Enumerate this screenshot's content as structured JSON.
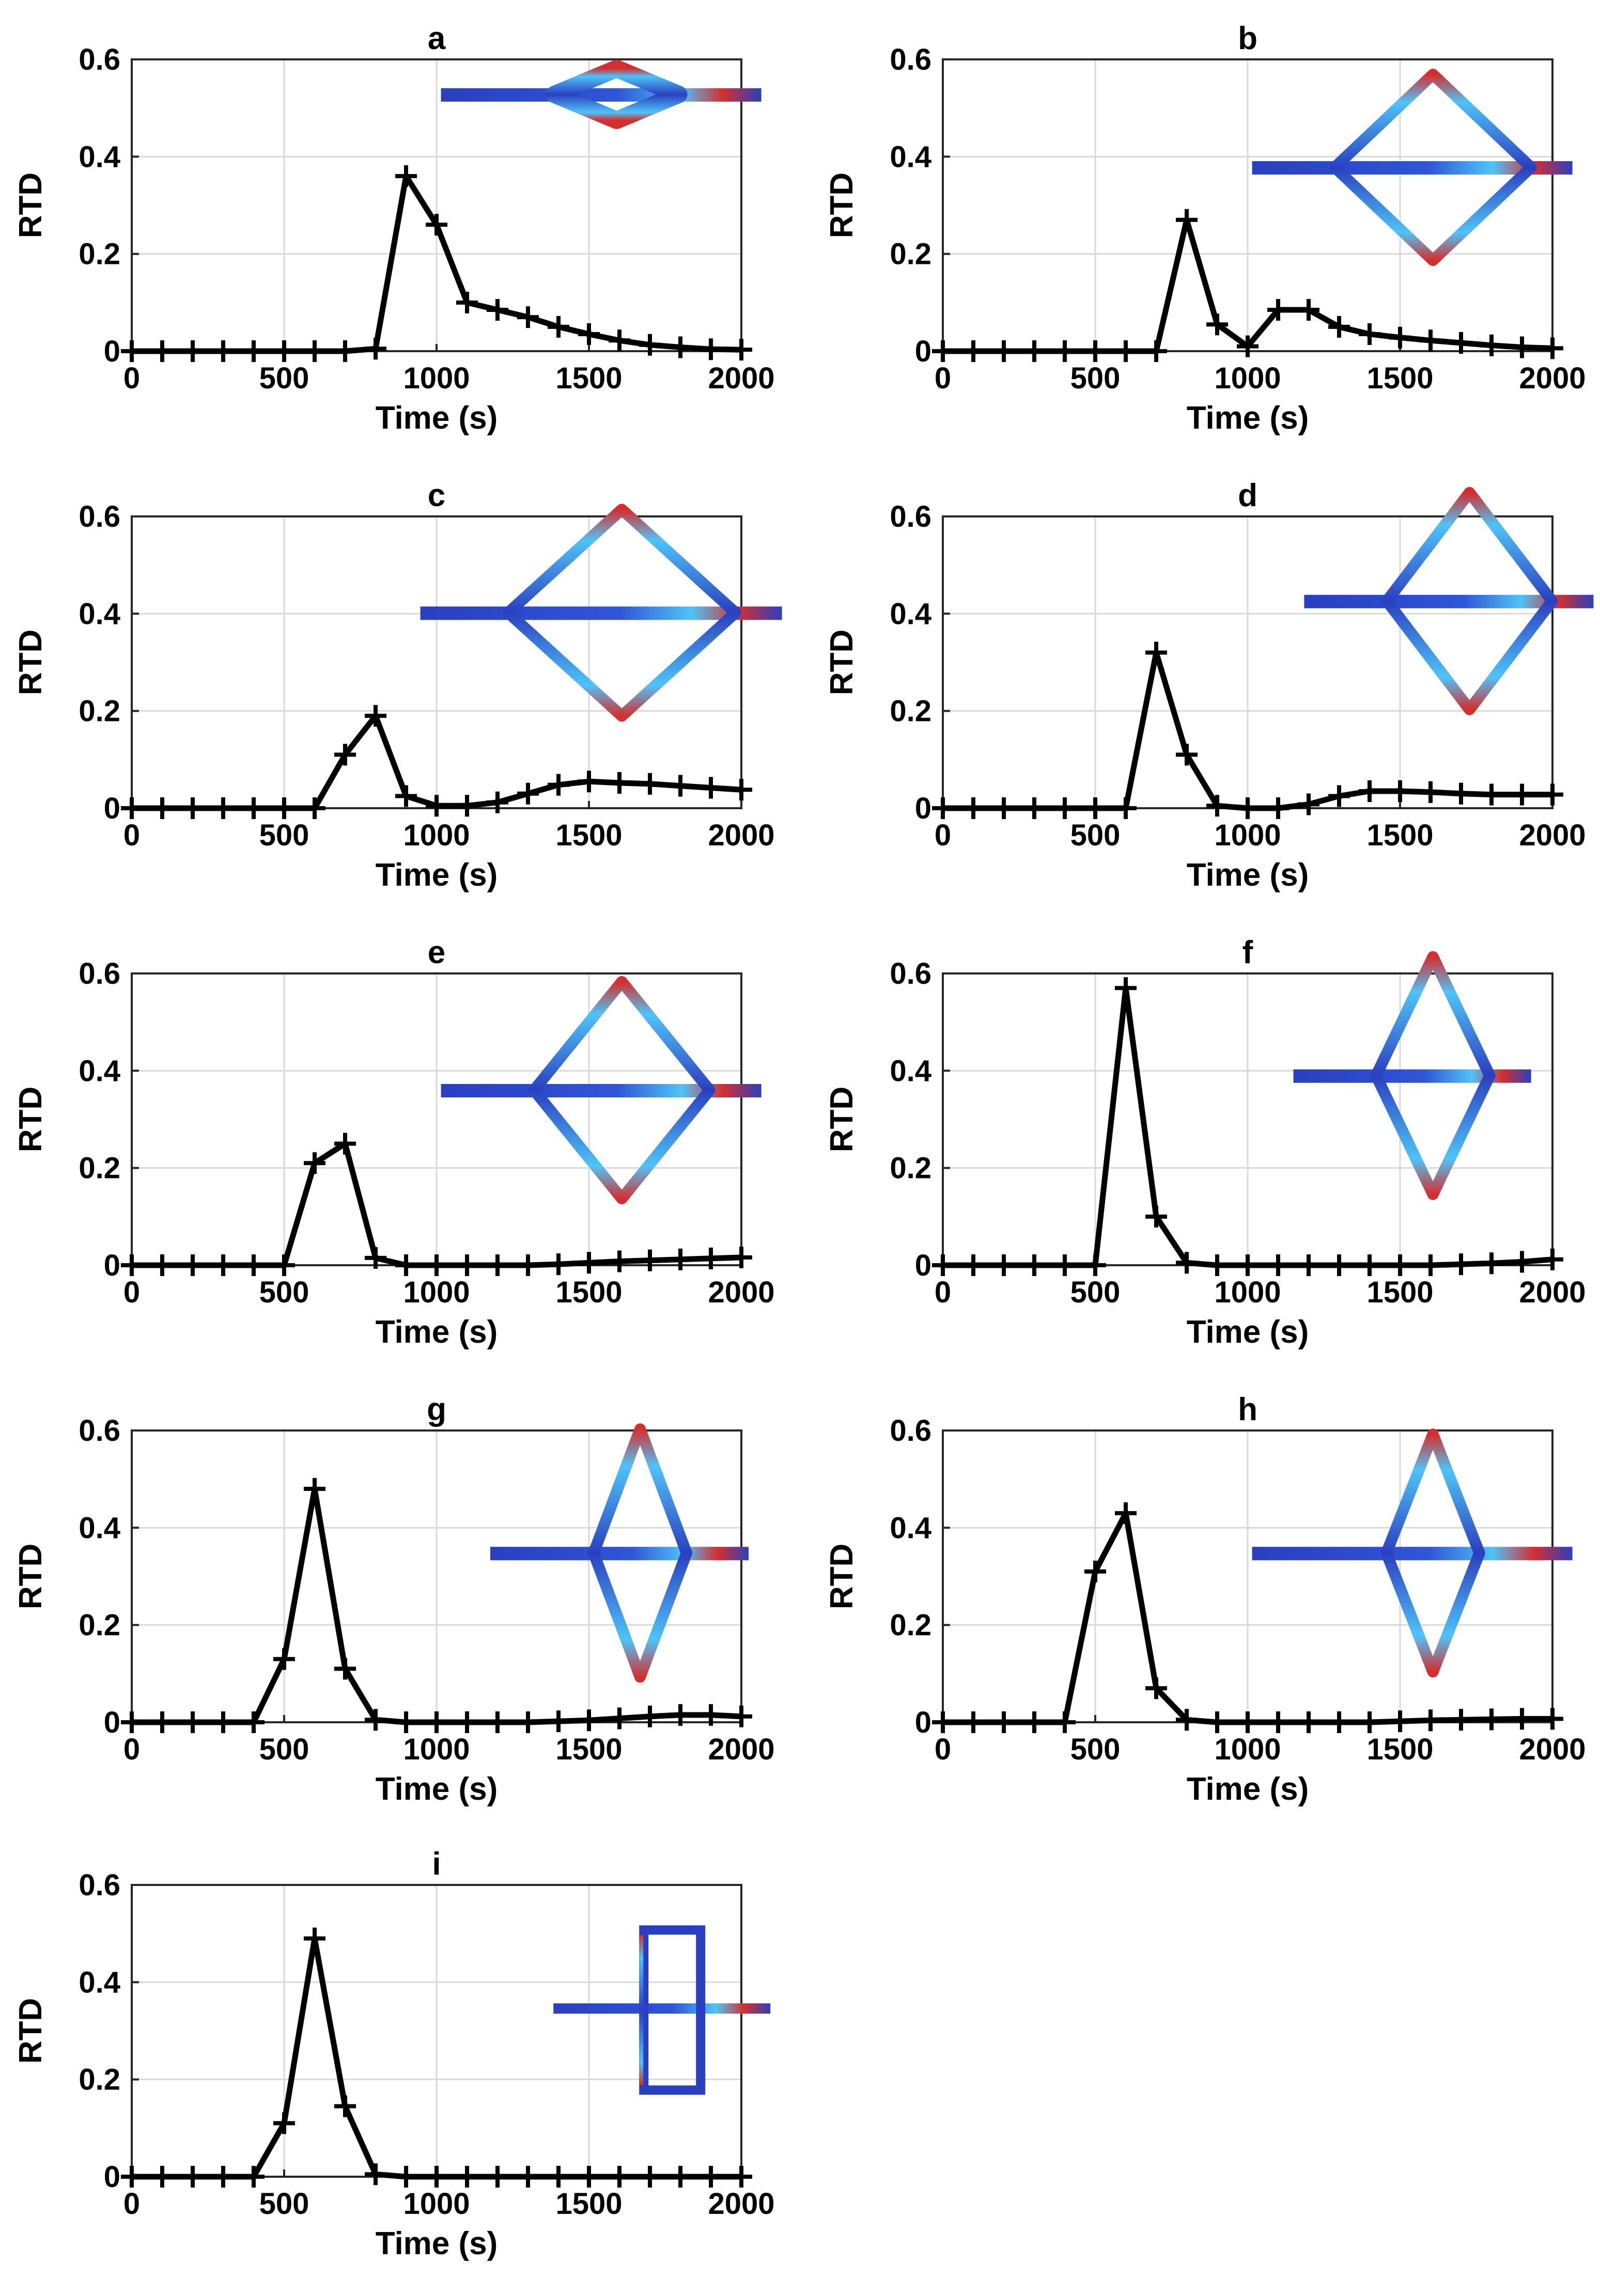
{
  "chart_data": [
    {
      "type": "line",
      "title": "a",
      "xlabel": "Time (s)",
      "ylabel": "RTD",
      "xlim": [
        0,
        2000
      ],
      "ylim": [
        0,
        0.6
      ],
      "xticks": [
        0,
        500,
        1000,
        1500,
        2000
      ],
      "yticks": [
        0,
        0.2,
        0.4,
        0.6
      ],
      "grid": true,
      "x": [
        0,
        100,
        200,
        300,
        400,
        500,
        600,
        700,
        800,
        900,
        1000,
        1100,
        1200,
        1300,
        1400,
        1500,
        1600,
        1700,
        1800,
        1900,
        2000
      ],
      "values": [
        0,
        0,
        0,
        0,
        0,
        0,
        0,
        0,
        0.005,
        0.36,
        0.26,
        0.1,
        0.085,
        0.07,
        0.05,
        0.035,
        0.022,
        0.013,
        0.008,
        0.004,
        0.003
      ],
      "inset": {
        "style": "straight-diamond"
      }
    },
    {
      "type": "line",
      "title": "b",
      "xlabel": "Time (s)",
      "ylabel": "RTD",
      "xlim": [
        0,
        2000
      ],
      "ylim": [
        0,
        0.6
      ],
      "xticks": [
        0,
        500,
        1000,
        1500,
        2000
      ],
      "yticks": [
        0,
        0.2,
        0.4,
        0.6
      ],
      "grid": true,
      "x": [
        0,
        100,
        200,
        300,
        400,
        500,
        600,
        700,
        800,
        900,
        1000,
        1100,
        1200,
        1300,
        1400,
        1500,
        1600,
        1700,
        1800,
        1900,
        2000
      ],
      "values": [
        0,
        0,
        0,
        0,
        0,
        0,
        0,
        0,
        0.27,
        0.055,
        0.01,
        0.085,
        0.085,
        0.05,
        0.035,
        0.028,
        0.022,
        0.017,
        0.012,
        0.008,
        0.006
      ],
      "inset": {
        "style": "diamond"
      }
    },
    {
      "type": "line",
      "title": "c",
      "xlabel": "Time (s)",
      "ylabel": "RTD",
      "xlim": [
        0,
        2000
      ],
      "ylim": [
        0,
        0.6
      ],
      "xticks": [
        0,
        500,
        1000,
        1500,
        2000
      ],
      "yticks": [
        0,
        0.2,
        0.4,
        0.6
      ],
      "grid": true,
      "x": [
        0,
        100,
        200,
        300,
        400,
        500,
        600,
        700,
        800,
        900,
        1000,
        1100,
        1200,
        1300,
        1400,
        1500,
        1600,
        1700,
        1800,
        1900,
        2000
      ],
      "values": [
        0,
        0,
        0,
        0,
        0,
        0,
        0,
        0.11,
        0.19,
        0.025,
        0.005,
        0.005,
        0.012,
        0.03,
        0.048,
        0.055,
        0.052,
        0.05,
        0.046,
        0.042,
        0.038
      ],
      "inset": {
        "style": "diamond"
      }
    },
    {
      "type": "line",
      "title": "d",
      "xlabel": "Time (s)",
      "ylabel": "RTD",
      "xlim": [
        0,
        2000
      ],
      "ylim": [
        0,
        0.6
      ],
      "xticks": [
        0,
        500,
        1000,
        1500,
        2000
      ],
      "yticks": [
        0,
        0.2,
        0.4,
        0.6
      ],
      "grid": true,
      "x": [
        0,
        100,
        200,
        300,
        400,
        500,
        600,
        700,
        800,
        900,
        1000,
        1100,
        1200,
        1300,
        1400,
        1500,
        1600,
        1700,
        1800,
        1900,
        2000
      ],
      "values": [
        0,
        0,
        0,
        0,
        0,
        0,
        0,
        0.32,
        0.11,
        0.005,
        0,
        0,
        0.008,
        0.025,
        0.035,
        0.035,
        0.033,
        0.03,
        0.028,
        0.028,
        0.028
      ],
      "inset": {
        "style": "diamond"
      }
    },
    {
      "type": "line",
      "title": "e",
      "xlabel": "Time (s)",
      "ylabel": "RTD",
      "xlim": [
        0,
        2000
      ],
      "ylim": [
        0,
        0.6
      ],
      "xticks": [
        0,
        500,
        1000,
        1500,
        2000
      ],
      "yticks": [
        0,
        0.2,
        0.4,
        0.6
      ],
      "grid": true,
      "x": [
        0,
        100,
        200,
        300,
        400,
        500,
        600,
        700,
        800,
        900,
        1000,
        1100,
        1200,
        1300,
        1400,
        1500,
        1600,
        1700,
        1800,
        1900,
        2000
      ],
      "values": [
        0,
        0,
        0,
        0,
        0,
        0,
        0.21,
        0.25,
        0.015,
        0,
        0,
        0,
        0,
        0,
        0.002,
        0.005,
        0.008,
        0.01,
        0.012,
        0.014,
        0.016
      ],
      "inset": {
        "style": "diamond"
      }
    },
    {
      "type": "line",
      "title": "f",
      "xlabel": "Time (s)",
      "ylabel": "RTD",
      "xlim": [
        0,
        2000
      ],
      "ylim": [
        0,
        0.6
      ],
      "xticks": [
        0,
        500,
        1000,
        1500,
        2000
      ],
      "yticks": [
        0,
        0.2,
        0.4,
        0.6
      ],
      "grid": true,
      "x": [
        0,
        100,
        200,
        300,
        400,
        500,
        600,
        700,
        800,
        900,
        1000,
        1100,
        1200,
        1300,
        1400,
        1500,
        1600,
        1700,
        1800,
        1900,
        2000
      ],
      "values": [
        0,
        0,
        0,
        0,
        0,
        0,
        0.57,
        0.1,
        0.005,
        0,
        0,
        0,
        0,
        0,
        0,
        0,
        0,
        0.002,
        0.004,
        0.007,
        0.012
      ],
      "inset": {
        "style": "diamond"
      }
    },
    {
      "type": "line",
      "title": "g",
      "xlabel": "Time (s)",
      "ylabel": "RTD",
      "xlim": [
        0,
        2000
      ],
      "ylim": [
        0,
        0.6
      ],
      "xticks": [
        0,
        500,
        1000,
        1500,
        2000
      ],
      "yticks": [
        0,
        0.2,
        0.4,
        0.6
      ],
      "grid": true,
      "x": [
        0,
        100,
        200,
        300,
        400,
        500,
        600,
        700,
        800,
        900,
        1000,
        1100,
        1200,
        1300,
        1400,
        1500,
        1600,
        1700,
        1800,
        1900,
        2000
      ],
      "values": [
        0,
        0,
        0,
        0,
        0,
        0.13,
        0.48,
        0.11,
        0.005,
        0,
        0,
        0,
        0,
        0,
        0.002,
        0.004,
        0.008,
        0.012,
        0.015,
        0.015,
        0.012
      ],
      "inset": {
        "style": "diamond"
      }
    },
    {
      "type": "line",
      "title": "h",
      "xlabel": "Time (s)",
      "ylabel": "RTD",
      "xlim": [
        0,
        2000
      ],
      "ylim": [
        0,
        0.6
      ],
      "xticks": [
        0,
        500,
        1000,
        1500,
        2000
      ],
      "yticks": [
        0,
        0.2,
        0.4,
        0.6
      ],
      "grid": true,
      "x": [
        0,
        100,
        200,
        300,
        400,
        500,
        600,
        700,
        800,
        900,
        1000,
        1100,
        1200,
        1300,
        1400,
        1500,
        1600,
        1700,
        1800,
        1900,
        2000
      ],
      "values": [
        0,
        0,
        0,
        0,
        0,
        0.31,
        0.43,
        0.07,
        0.005,
        0,
        0,
        0,
        0,
        0,
        0,
        0.002,
        0.004,
        0.005,
        0.006,
        0.007,
        0.007
      ],
      "inset": {
        "style": "diamond"
      }
    },
    {
      "type": "line",
      "title": "i",
      "xlabel": "Time (s)",
      "ylabel": "RTD",
      "xlim": [
        0,
        2000
      ],
      "ylim": [
        0,
        0.6
      ],
      "xticks": [
        0,
        500,
        1000,
        1500,
        2000
      ],
      "yticks": [
        0,
        0.2,
        0.4,
        0.6
      ],
      "grid": true,
      "x": [
        0,
        100,
        200,
        300,
        400,
        500,
        600,
        700,
        800,
        900,
        1000,
        1100,
        1200,
        1300,
        1400,
        1500,
        1600,
        1700,
        1800,
        1900,
        2000
      ],
      "values": [
        0,
        0,
        0,
        0,
        0,
        0.11,
        0.49,
        0.145,
        0.005,
        0,
        0,
        0,
        0,
        0,
        0,
        0,
        0,
        0,
        0,
        0,
        0
      ],
      "inset": {
        "style": "rectangle"
      }
    }
  ],
  "colors": {
    "series": "#000000",
    "grid": "#d9d9d9",
    "channel_low": "#2a3fbf",
    "channel_mid": "#4fc3f7",
    "channel_high": "#d32f2f"
  }
}
